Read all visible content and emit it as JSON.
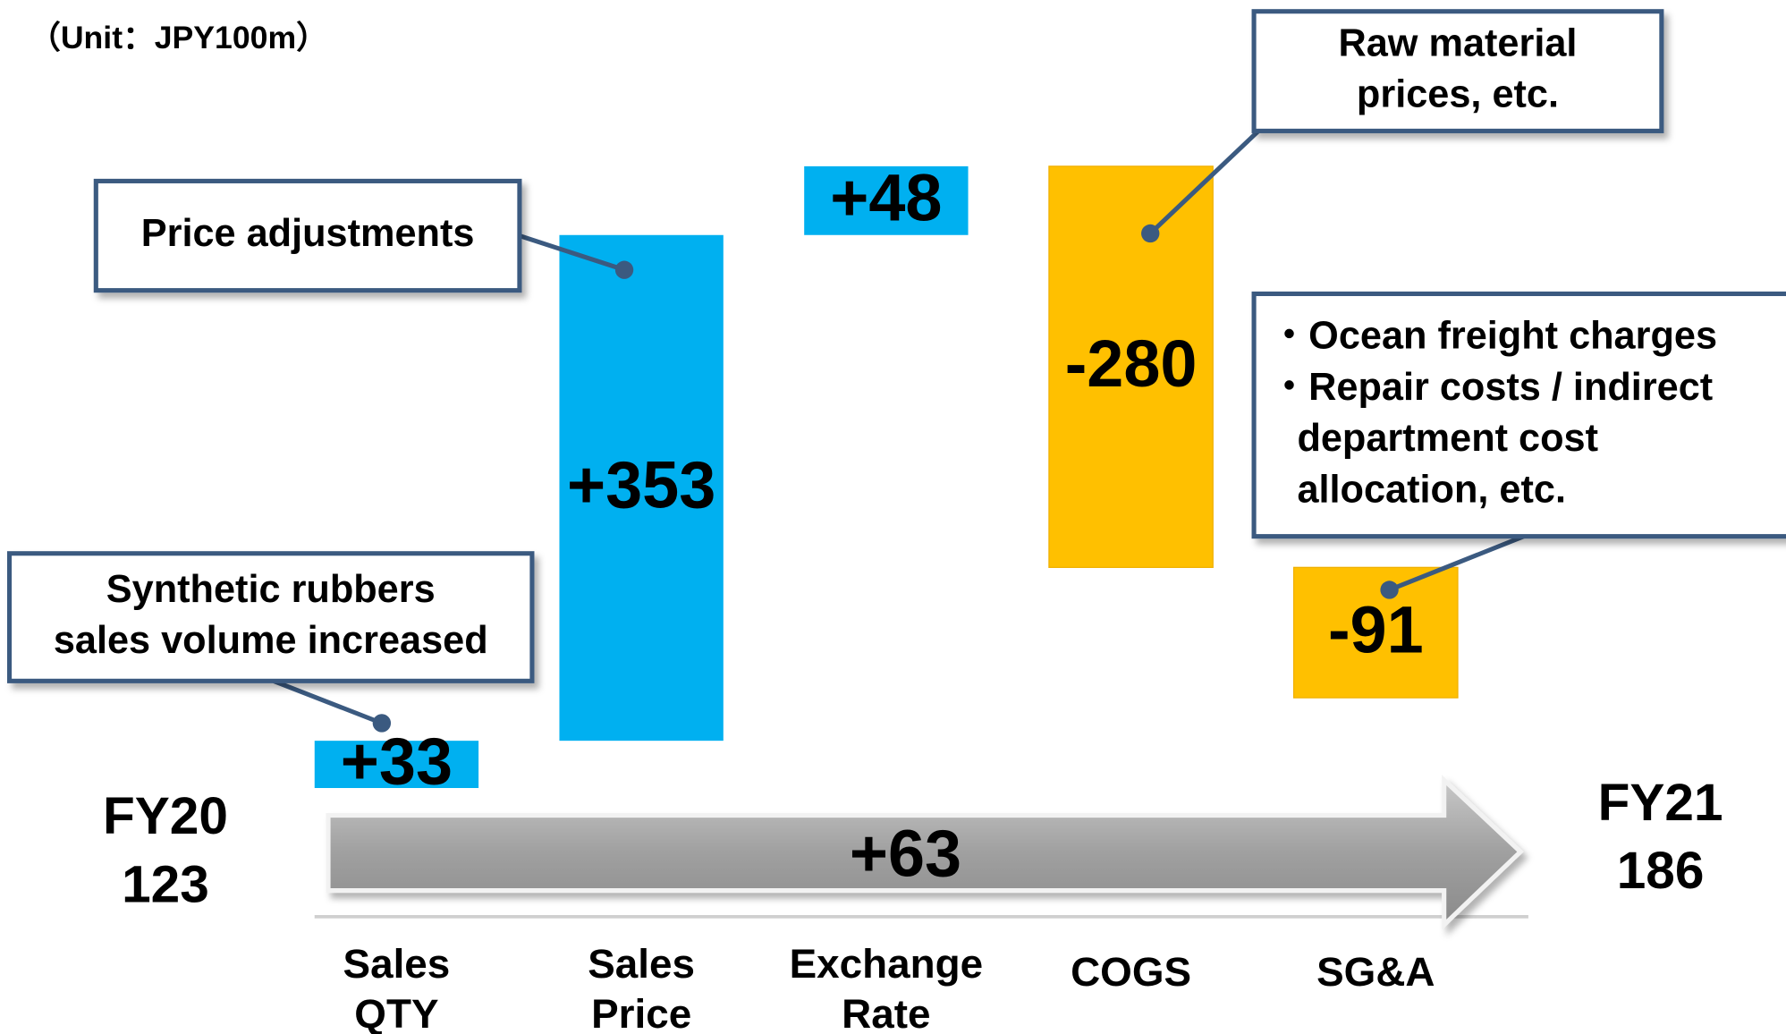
{
  "chart_data": {
    "type": "waterfall",
    "unit_note": "（Unit：JPY100m）",
    "start": {
      "label": "FY20",
      "value": 123
    },
    "end": {
      "label": "FY21",
      "value": 186
    },
    "change": {
      "value": 63,
      "label": "+63"
    },
    "categories": [
      "Sales QTY",
      "Sales Price",
      "Exchange Rate",
      "COGS",
      "SG&A"
    ],
    "values": [
      33,
      353,
      48,
      -280,
      -91
    ],
    "value_labels": [
      "+33",
      "+353",
      "+48",
      "-280",
      "-91"
    ],
    "positive_color": "#00b0f0",
    "negative_color": "#ffc000",
    "annotations": [
      {
        "lines": [
          "Synthetic rubbers",
          "sales volume increased"
        ]
      },
      {
        "lines": [
          "Price adjustments"
        ]
      },
      {
        "lines": [
          "Raw material",
          "prices, etc."
        ]
      },
      {
        "lines": [
          "・Ocean freight charges",
          "・Repair costs / indirect",
          "department cost",
          "allocation, etc."
        ]
      }
    ]
  }
}
